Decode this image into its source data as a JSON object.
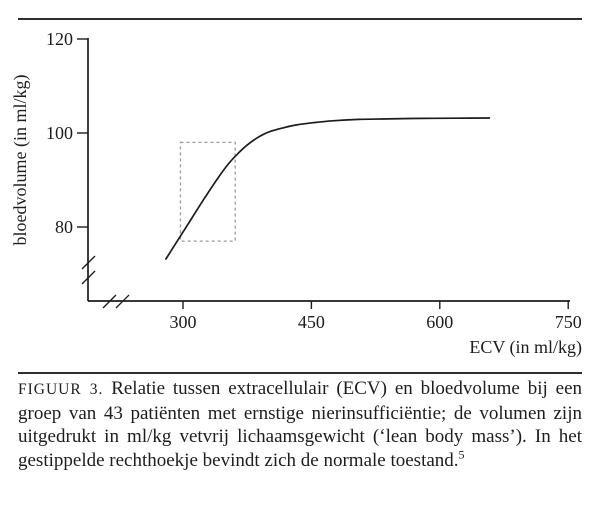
{
  "colors": {
    "axis": "#1c1c1c",
    "curve": "#1c1c1c",
    "highlight_box": "#9a9a9a",
    "text": "#1d1d1d",
    "rule": "#2e2e2e"
  },
  "chart_data": {
    "type": "line",
    "title": "",
    "xlabel": "ECV (in ml/kg)",
    "ylabel": "bloedvolume (in ml/kg)",
    "x_ticks": [
      300,
      450,
      600,
      750
    ],
    "y_ticks": [
      80,
      100,
      120
    ],
    "xlim": [
      300,
      750
    ],
    "ylim": [
      80,
      120
    ],
    "axis_breaks": {
      "x": true,
      "y": true
    },
    "grid": false,
    "legend": false,
    "series": [
      {
        "name": "relatie ECV - bloedvolume",
        "points": [
          [
            280,
            73.2
          ],
          [
            295,
            77.5
          ],
          [
            310,
            81.8
          ],
          [
            325,
            86.1
          ],
          [
            340,
            90.2
          ],
          [
            352,
            93.2
          ],
          [
            364,
            95.6
          ],
          [
            376,
            97.6
          ],
          [
            388,
            99.1
          ],
          [
            400,
            100.2
          ],
          [
            415,
            101.0
          ],
          [
            432,
            101.7
          ],
          [
            452,
            102.2
          ],
          [
            475,
            102.6
          ],
          [
            505,
            102.9
          ],
          [
            540,
            103.0
          ],
          [
            580,
            103.1
          ],
          [
            620,
            103.15
          ],
          [
            658,
            103.2
          ]
        ]
      }
    ],
    "highlight_box": {
      "x_range": [
        297,
        361
      ],
      "y_range": [
        77,
        98
      ],
      "style": "dashed"
    }
  },
  "caption": {
    "label": "FIGUUR 3.",
    "text": "Relatie tussen extracellulair (ECV) en bloedvolume bij een groep van 43 patiënten met ernstige nierinsufficiëntie; de volumen zijn uitgedrukt in ml/kg vetvrij lichaamsgewicht (‘lean body mass’). In het gestippelde rechthoekje bevindt zich de normale toestand.",
    "footnote_marker": "5"
  }
}
